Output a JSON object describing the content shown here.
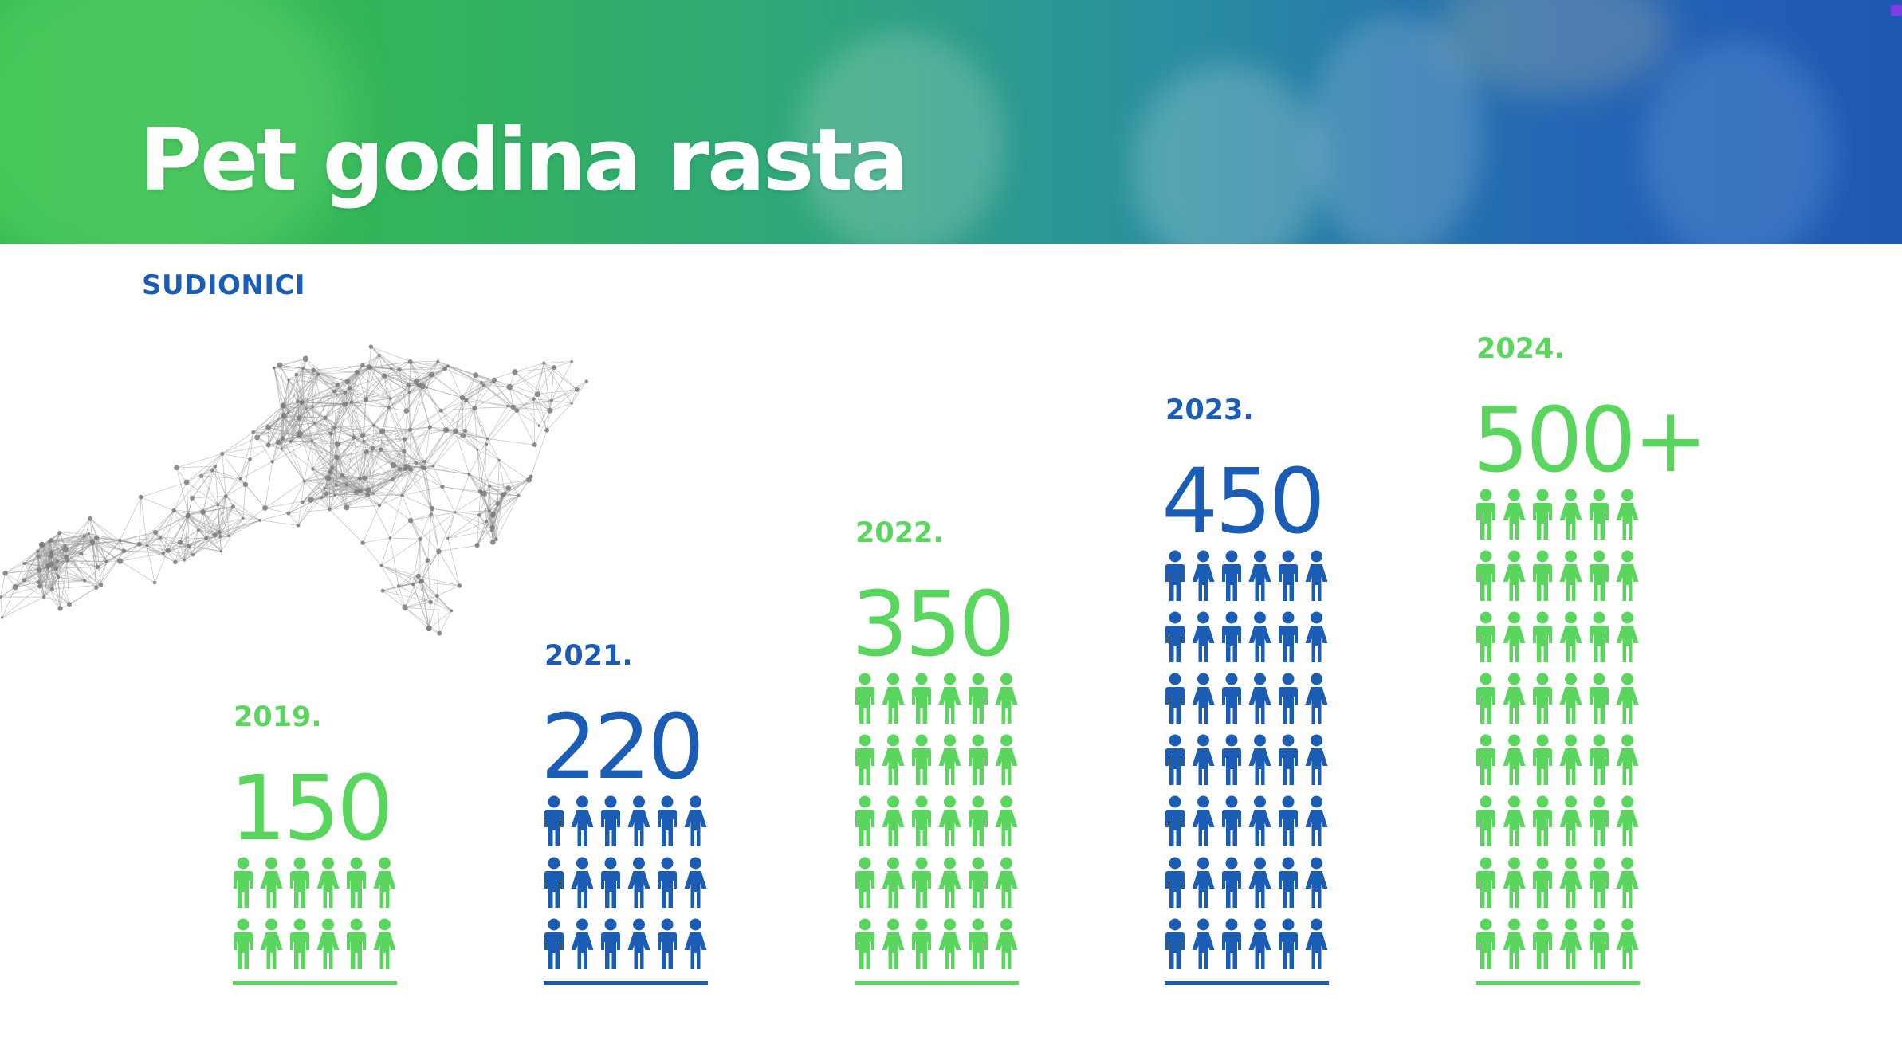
{
  "banner": {
    "title": "Pet godina rasta"
  },
  "section": {
    "label": "SUDIONICI"
  },
  "colors": {
    "green": "#5ad55e",
    "blue": "#1b5cb5",
    "network": "#9a9a9a"
  },
  "icons": {
    "person": "person-icon",
    "network": "network-arrow-icon"
  },
  "chart_data": {
    "type": "bar",
    "title": "",
    "xlabel": "",
    "ylabel": "",
    "categories": [
      "2019.",
      "2021.",
      "2022.",
      "2023.",
      "2024."
    ],
    "values": [
      150,
      220,
      350,
      450,
      500
    ],
    "value_labels": [
      "150",
      "220",
      "350",
      "450",
      "500+"
    ],
    "colors": [
      "#5ad55e",
      "#1b5cb5",
      "#5ad55e",
      "#1b5cb5",
      "#5ad55e"
    ],
    "icon_rows": [
      2,
      3,
      5,
      7,
      8
    ],
    "icons_per_row": 6,
    "grid": false
  }
}
